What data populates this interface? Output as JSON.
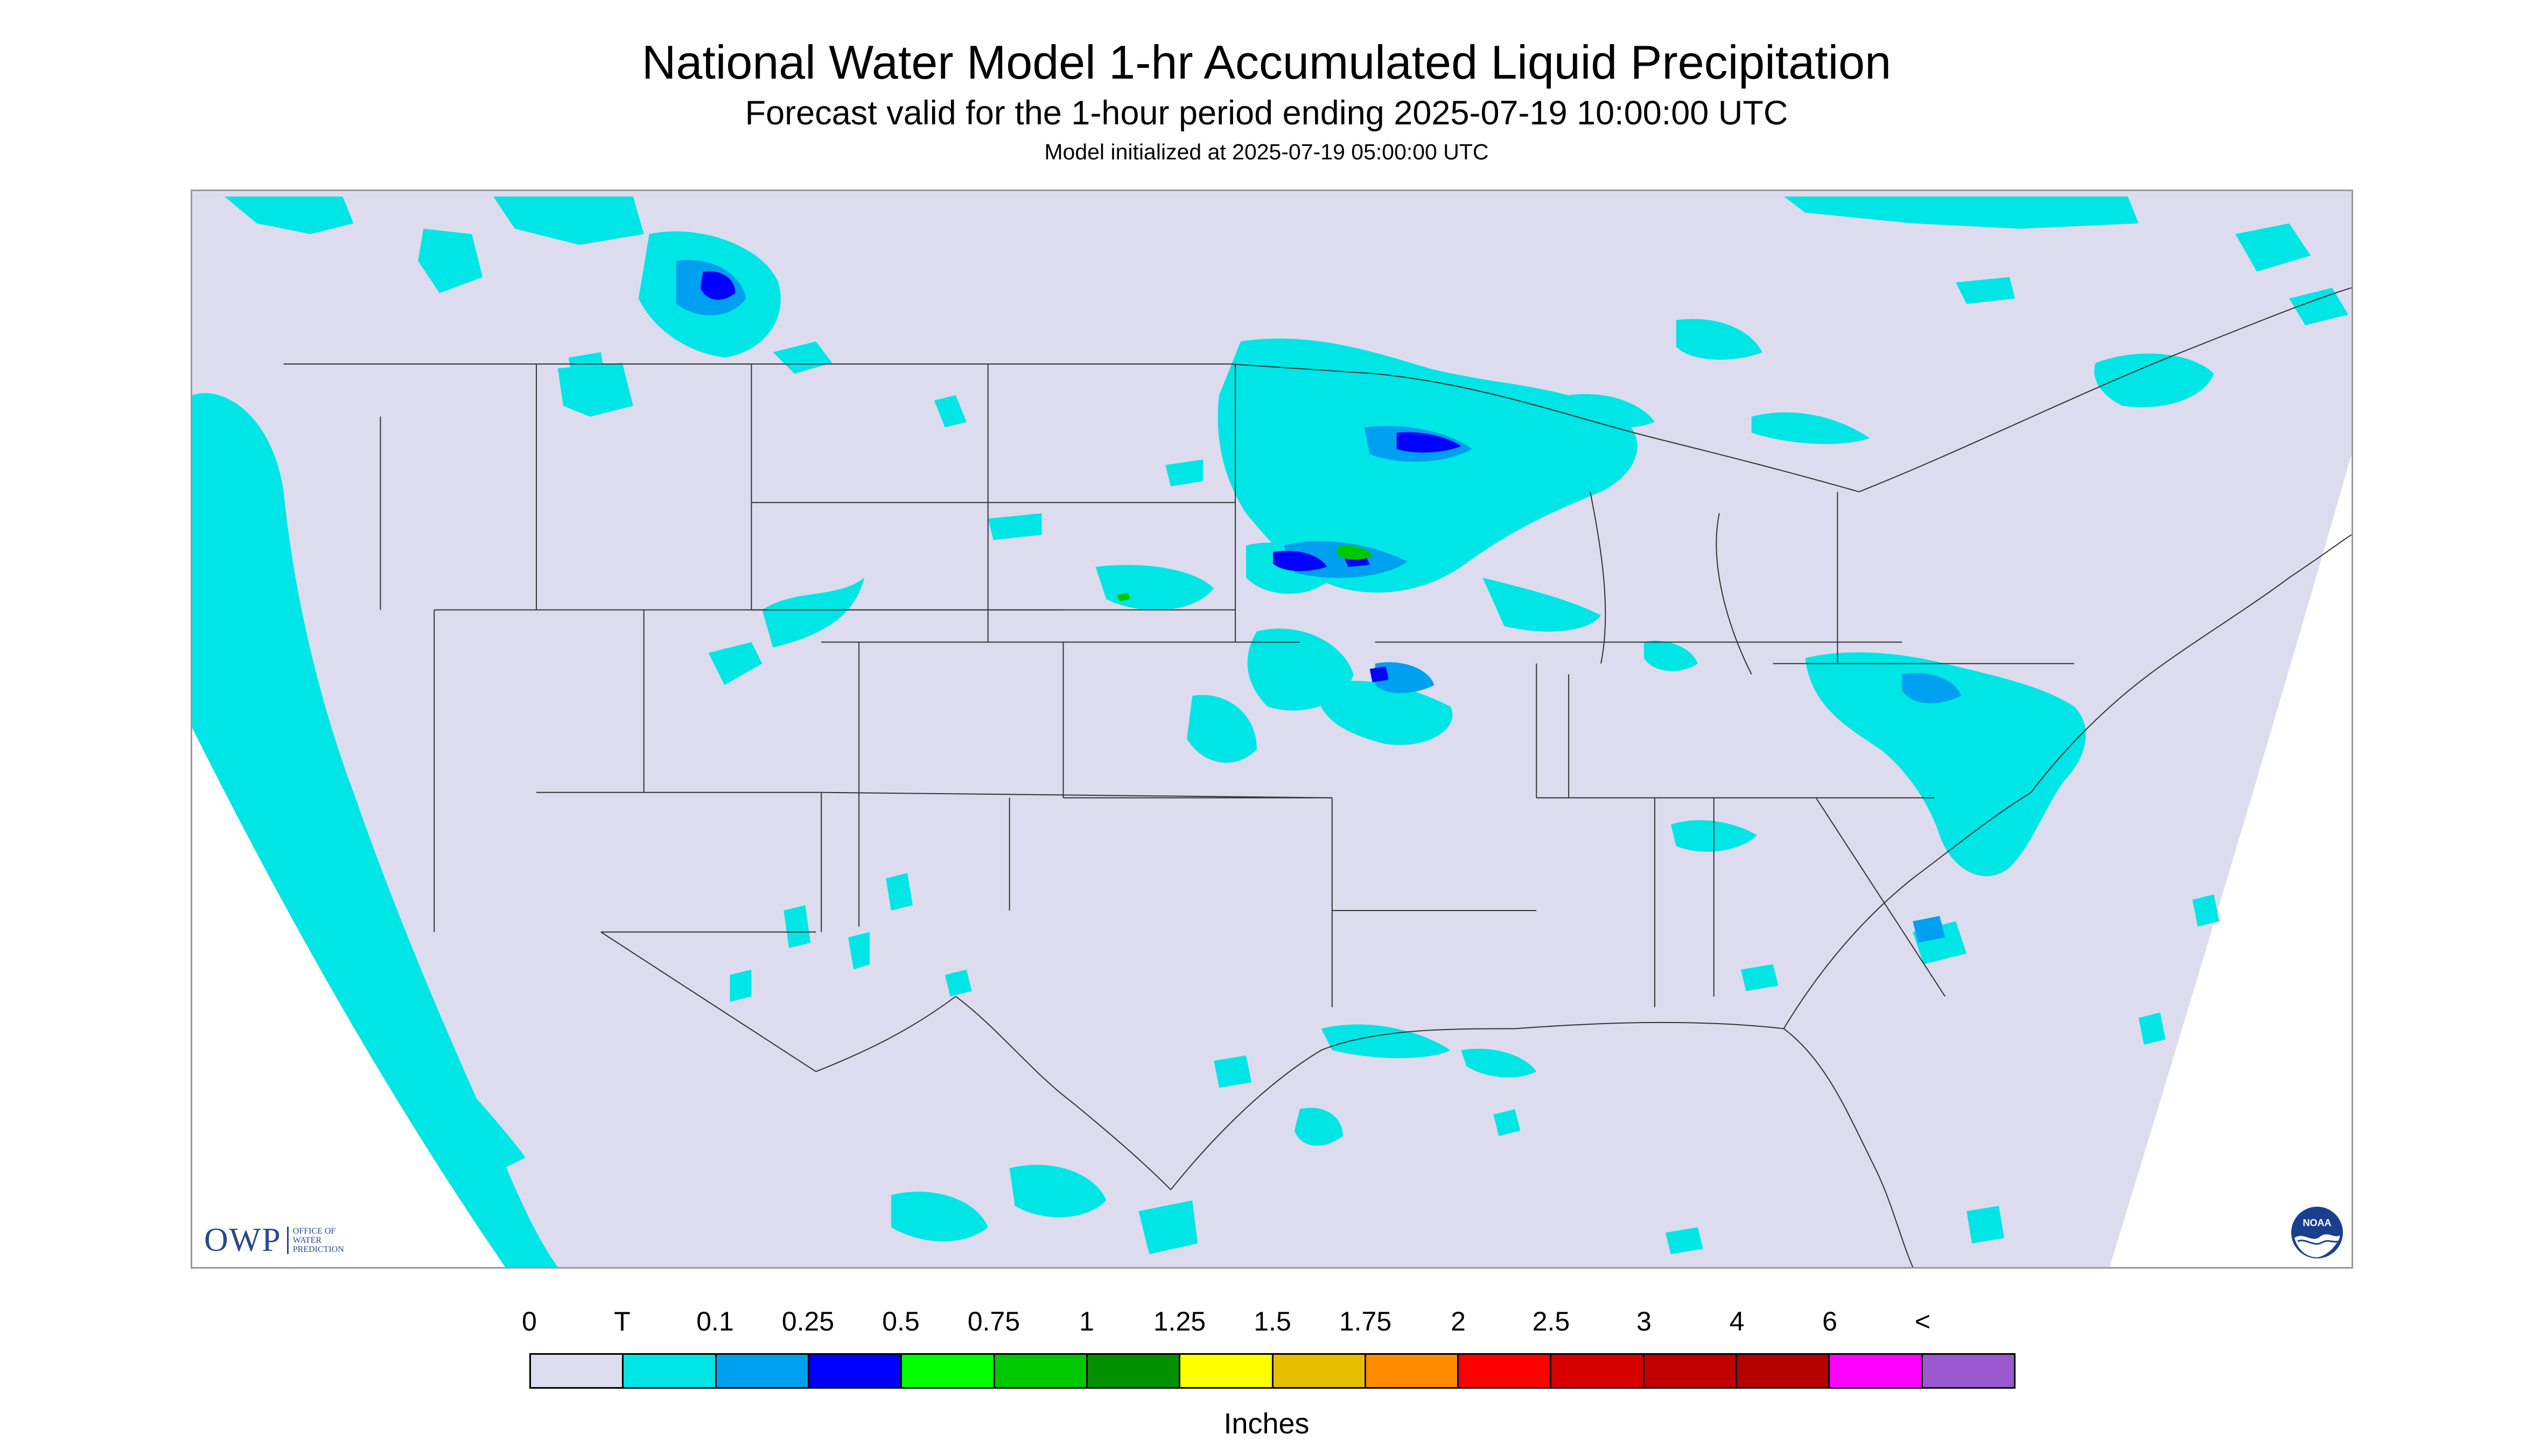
{
  "title": "National Water Model 1-hr Accumulated Liquid Precipitation",
  "subtitle": "Forecast valid for the 1-hour period ending 2025-07-19 10:00:00 UTC",
  "init_text": "Model initialized at 2025-07-19 05:00:00 UTC",
  "logos": {
    "owp_mark": "OWP",
    "owp_sub": "Office of Water Prediction",
    "noaa": "NOAA"
  },
  "colors": {
    "background_no_precip": "#DCDCEE",
    "trace": "#00E5E5",
    "light": "#00A0F0",
    "moderate": "#0000FF",
    "heavy": "#00C800"
  },
  "legend": {
    "tick_labels": [
      "0",
      "T",
      "0.1",
      "0.25",
      "0.5",
      "0.75",
      "1",
      "1.25",
      "1.5",
      "1.75",
      "2",
      "2.5",
      "3",
      "4",
      "6",
      "<"
    ],
    "colors": [
      "#DCDCEE",
      "#00E5E5",
      "#00A0F0",
      "#0000FF",
      "#00FF00",
      "#00C800",
      "#009000",
      "#FFFF00",
      "#E6BE00",
      "#FF8C00",
      "#FF0000",
      "#D70000",
      "#C00000",
      "#B40000",
      "#FF00FF",
      "#9B59D0"
    ],
    "units": "Inches"
  }
}
